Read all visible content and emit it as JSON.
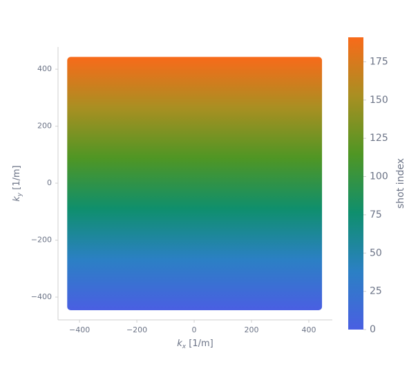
{
  "chart_data": {
    "type": "kspace",
    "xlabel": {
      "symbol": "k",
      "subscript": "x",
      "unit": " [1/m]"
    },
    "ylabel": {
      "symbol": "k",
      "subscript": "y",
      "unit": " [1/m]"
    },
    "xlim": [
      -475,
      482
    ],
    "ylim": [
      -480,
      478
    ],
    "xticks": [
      {
        "value": -400,
        "label": "−400"
      },
      {
        "value": -200,
        "label": "−200"
      },
      0,
      200,
      400
    ],
    "yticks": [
      {
        "value": -400,
        "label": "−400"
      },
      {
        "value": -200,
        "label": "−200"
      },
      0,
      200,
      400
    ],
    "region": {
      "kx": [
        -443,
        446
      ],
      "ky": [
        -446,
        443
      ]
    },
    "colorbar": {
      "label": "shot index",
      "clim": [
        0,
        191
      ],
      "ticks": [
        0,
        25,
        50,
        75,
        100,
        125,
        150,
        175
      ],
      "colormap": [
        "#4a5fe2",
        "#2b80c4",
        "#0f8f6d",
        "#4f9624",
        "#a98f22",
        "#f86a1a"
      ]
    }
  }
}
